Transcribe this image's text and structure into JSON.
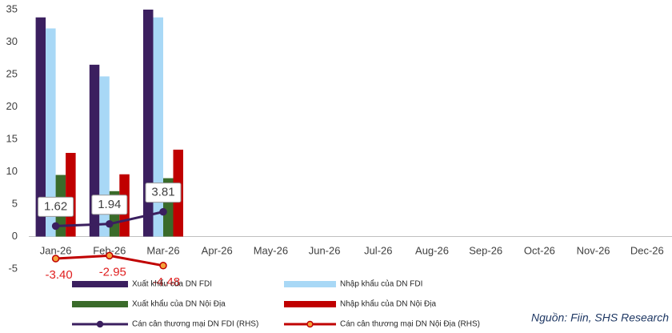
{
  "chart_data": {
    "type": "bar",
    "categories": [
      "Jan-26",
      "Feb-26",
      "Mar-26",
      "Apr-26",
      "May-26",
      "Jun-26",
      "Jul-26",
      "Aug-26",
      "Sep-26",
      "Oct-26",
      "Nov-26",
      "Dec-26"
    ],
    "ylim": [
      -5,
      35
    ],
    "yticks": [
      -5,
      0,
      5,
      10,
      15,
      20,
      25,
      30,
      35
    ],
    "y2lim": [
      -5,
      35
    ],
    "series": [
      {
        "name": "Xuất khẩu của DN FDI",
        "color": "#3b1f5f",
        "values": [
          33.8,
          26.5,
          35,
          null,
          null,
          null,
          null,
          null,
          null,
          null,
          null,
          null
        ]
      },
      {
        "name": "Nhập khẩu của DN FDI",
        "color": "#a8d8f6",
        "values": [
          32.1,
          24.7,
          33.8,
          null,
          null,
          null,
          null,
          null,
          null,
          null,
          null,
          null
        ]
      },
      {
        "name": "Xuất khẩu của DN Nội Địa",
        "color": "#3a6b2a",
        "values": [
          9.5,
          7,
          9,
          null,
          null,
          null,
          null,
          null,
          null,
          null,
          null,
          null
        ]
      },
      {
        "name": "Nhập khẩu của DN Nội Địa",
        "color": "#c00000",
        "values": [
          12.9,
          9.6,
          13.4,
          null,
          null,
          null,
          null,
          null,
          null,
          null,
          null,
          null
        ]
      },
      {
        "name": "Cán cân thương mại DN FDI (RHS)",
        "color": "#3b1f5f",
        "type": "line",
        "axis": "y2",
        "values": [
          1.62,
          1.94,
          3.81,
          null,
          null,
          null,
          null,
          null,
          null,
          null,
          null,
          null
        ]
      },
      {
        "name": "Cán cân thương mại DN Nội Địa (RHS)",
        "color": "#c00000",
        "marker_color": "#f4a23a",
        "type": "line",
        "axis": "y2",
        "values": [
          -3.4,
          -2.95,
          -4.48,
          null,
          null,
          null,
          null,
          null,
          null,
          null,
          null,
          null
        ],
        "value_labels": [
          "-3.40",
          "-2.95",
          "-4.48",
          null,
          null,
          null,
          null,
          null,
          null,
          null,
          null,
          null
        ]
      }
    ],
    "source": "Nguồn: Fiin, SHS Research"
  }
}
